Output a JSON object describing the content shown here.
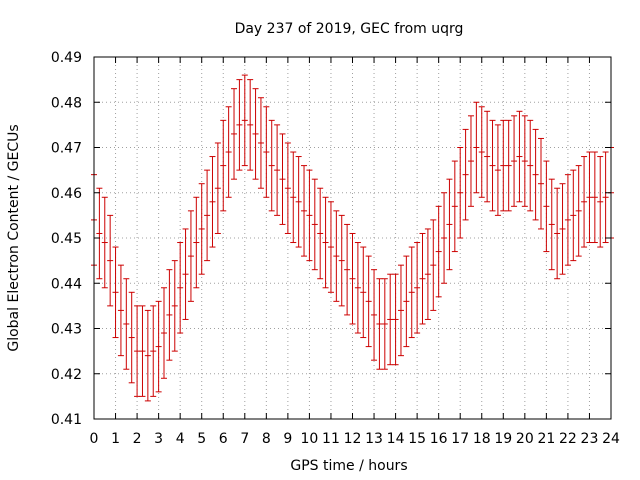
{
  "chart_data": {
    "type": "errorbar",
    "title": "Day 237 of 2019, GEC from uqrg",
    "xlabel": "GPS time / hours",
    "ylabel": "Global Electron Content / GECUs",
    "xlim": [
      0,
      24
    ],
    "ylim": [
      0.41,
      0.49
    ],
    "xticks": [
      "0",
      "1",
      "2",
      "3",
      "4",
      "5",
      "6",
      "7",
      "8",
      "9",
      "10",
      "11",
      "12",
      "13",
      "14",
      "15",
      "16",
      "17",
      "18",
      "19",
      "20",
      "21",
      "22",
      "23",
      "24"
    ],
    "yticks": [
      "0.41",
      "0.42",
      "0.43",
      "0.44",
      "0.45",
      "0.46",
      "0.47",
      "0.48",
      "0.49"
    ],
    "grid": true,
    "series": [
      {
        "name": "GEC",
        "color": "#cc0000",
        "error": 0.01,
        "x": [
          0,
          0.25,
          0.5,
          0.75,
          1,
          1.25,
          1.5,
          1.75,
          2,
          2.25,
          2.5,
          2.75,
          3,
          3.25,
          3.5,
          3.75,
          4,
          4.25,
          4.5,
          4.75,
          5,
          5.25,
          5.5,
          5.75,
          6,
          6.25,
          6.5,
          6.75,
          7,
          7.25,
          7.5,
          7.75,
          8,
          8.25,
          8.5,
          8.75,
          9,
          9.25,
          9.5,
          9.75,
          10,
          10.25,
          10.5,
          10.75,
          11,
          11.25,
          11.5,
          11.75,
          12,
          12.25,
          12.5,
          12.75,
          13,
          13.25,
          13.5,
          13.75,
          14,
          14.25,
          14.5,
          14.75,
          15,
          15.25,
          15.5,
          15.75,
          16,
          16.25,
          16.5,
          16.75,
          17,
          17.25,
          17.5,
          17.75,
          18,
          18.25,
          18.5,
          18.75,
          19,
          19.25,
          19.5,
          19.75,
          20,
          20.25,
          20.5,
          20.75,
          21,
          21.25,
          21.5,
          21.75,
          22,
          22.25,
          22.5,
          22.75,
          23,
          23.25,
          23.5,
          23.75,
          24
        ],
        "y": [
          0.454,
          0.451,
          0.449,
          0.445,
          0.438,
          0.434,
          0.431,
          0.428,
          0.425,
          0.425,
          0.424,
          0.425,
          0.426,
          0.429,
          0.433,
          0.435,
          0.439,
          0.442,
          0.446,
          0.449,
          0.452,
          0.455,
          0.458,
          0.461,
          0.466,
          0.469,
          0.473,
          0.475,
          0.476,
          0.475,
          0.473,
          0.471,
          0.469,
          0.466,
          0.465,
          0.463,
          0.461,
          0.459,
          0.458,
          0.456,
          0.455,
          0.453,
          0.451,
          0.449,
          0.448,
          0.446,
          0.445,
          0.443,
          0.441,
          0.439,
          0.438,
          0.436,
          0.433,
          0.431,
          0.431,
          0.432,
          0.432,
          0.434,
          0.436,
          0.438,
          0.439,
          0.441,
          0.442,
          0.444,
          0.447,
          0.45,
          0.453,
          0.457,
          0.46,
          0.464,
          0.467,
          0.47,
          0.469,
          0.468,
          0.466,
          0.465,
          0.466,
          0.466,
          0.467,
          0.468,
          0.467,
          0.466,
          0.464,
          0.462,
          0.457,
          0.453,
          0.451,
          0.452,
          0.454,
          0.455,
          0.456,
          0.458,
          0.459,
          0.459,
          0.458,
          0.459,
          0.46
        ]
      }
    ]
  }
}
